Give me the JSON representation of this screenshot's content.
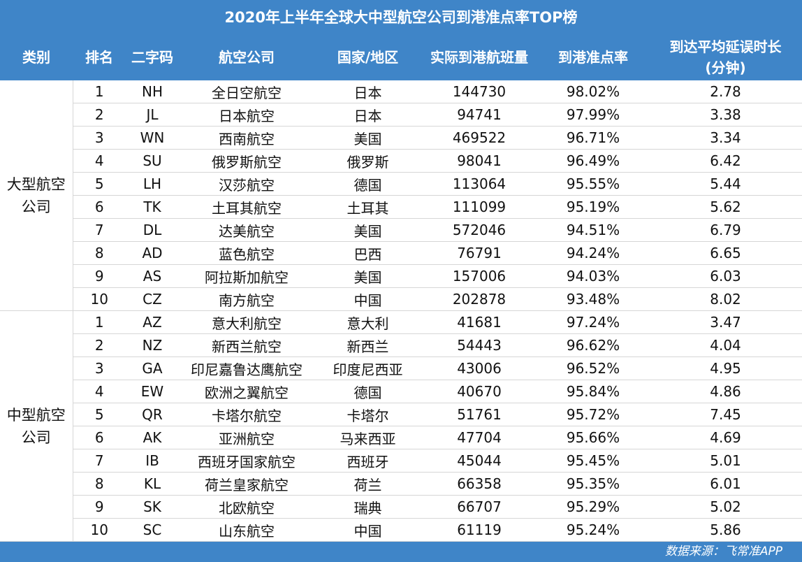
{
  "title": "2020年上半年全球大中型航空公司到港准点率TOP榜",
  "headers": [
    "类别",
    "排名",
    "二字码",
    "航空公司",
    "国家/地区",
    "实际到港航班量",
    "到港准点率",
    "到达平均延误时长\n(分钟)"
  ],
  "groups": [
    {
      "category": "大型航空公司",
      "rows": [
        [
          "1",
          "NH",
          "全日空航空",
          "日本",
          "144730",
          "98.02%",
          "2.78"
        ],
        [
          "2",
          "JL",
          "日本航空",
          "日本",
          "94741",
          "97.99%",
          "3.38"
        ],
        [
          "3",
          "WN",
          "西南航空",
          "美国",
          "469522",
          "96.71%",
          "3.34"
        ],
        [
          "4",
          "SU",
          "俄罗斯航空",
          "俄罗斯",
          "98041",
          "96.49%",
          "6.42"
        ],
        [
          "5",
          "LH",
          "汉莎航空",
          "德国",
          "113064",
          "95.55%",
          "5.44"
        ],
        [
          "6",
          "TK",
          "土耳其航空",
          "土耳其",
          "111099",
          "95.19%",
          "5.62"
        ],
        [
          "7",
          "DL",
          "达美航空",
          "美国",
          "572046",
          "94.51%",
          "6.79"
        ],
        [
          "8",
          "AD",
          "蓝色航空",
          "巴西",
          "76791",
          "94.24%",
          "6.65"
        ],
        [
          "9",
          "AS",
          "阿拉斯加航空",
          "美国",
          "157006",
          "94.03%",
          "6.03"
        ],
        [
          "10",
          "CZ",
          "南方航空",
          "中国",
          "202878",
          "93.48%",
          "8.02"
        ]
      ]
    },
    {
      "category": "中型航空公司",
      "rows": [
        [
          "1",
          "AZ",
          "意大利航空",
          "意大利",
          "41681",
          "97.24%",
          "3.47"
        ],
        [
          "2",
          "NZ",
          "新西兰航空",
          "新西兰",
          "54443",
          "96.62%",
          "4.04"
        ],
        [
          "3",
          "GA",
          "印尼嘉鲁达鹰航空",
          "印度尼西亚",
          "43006",
          "96.52%",
          "4.95"
        ],
        [
          "4",
          "EW",
          "欧洲之翼航空",
          "德国",
          "40670",
          "95.84%",
          "4.86"
        ],
        [
          "5",
          "QR",
          "卡塔尔航空",
          "卡塔尔",
          "51761",
          "95.72%",
          "7.45"
        ],
        [
          "6",
          "AK",
          "亚洲航空",
          "马来西亚",
          "47704",
          "95.66%",
          "4.69"
        ],
        [
          "7",
          "IB",
          "西班牙国家航空",
          "西班牙",
          "45044",
          "95.45%",
          "5.01"
        ],
        [
          "8",
          "KL",
          "荷兰皇家航空",
          "荷兰",
          "66358",
          "95.35%",
          "6.01"
        ],
        [
          "9",
          "SK",
          "北欧航空",
          "瑞典",
          "66707",
          "95.29%",
          "5.02"
        ],
        [
          "10",
          "SC",
          "山东航空",
          "中国",
          "61119",
          "95.24%",
          "5.86"
        ]
      ]
    }
  ],
  "source": "数据来源：飞常准APP",
  "colors": {
    "header_bg": "#3f85c8",
    "header_text": "#ffffff",
    "grid_line": "#d6d6d6"
  }
}
